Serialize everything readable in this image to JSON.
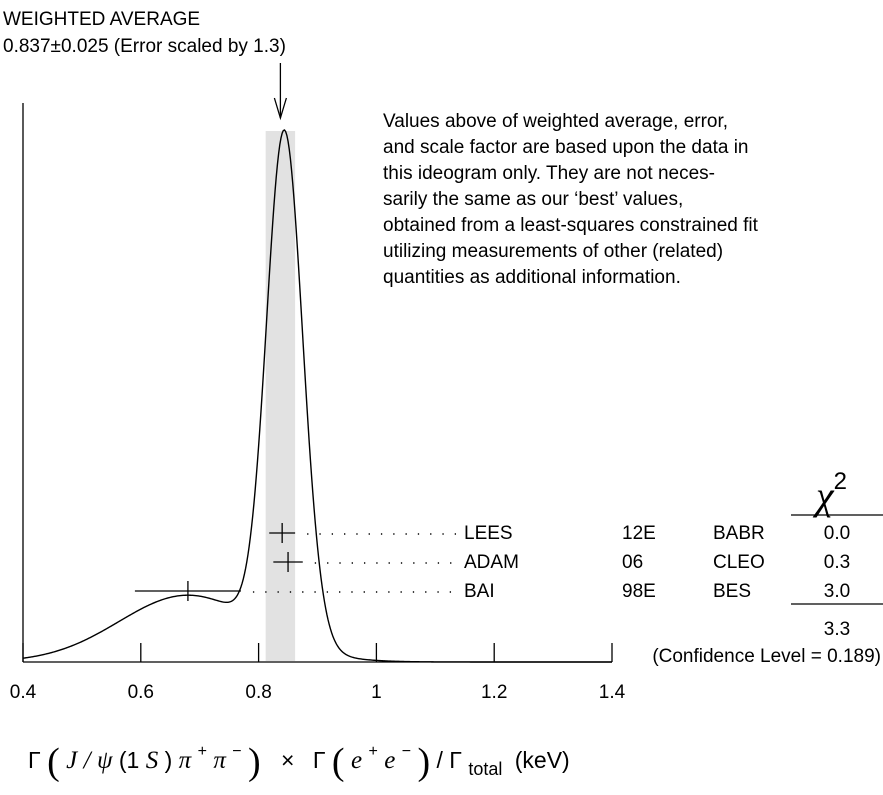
{
  "header": {
    "title": "WEIGHTED AVERAGE",
    "subtitle": "0.837±0.025 (Error scaled by 1.3)"
  },
  "note": [
    "Values above of weighted average, error,",
    "and scale factor are based upon the data in",
    "this ideogram only.  They are not neces-",
    "sarily the same as our ‘best’ values,",
    "obtained from a least-squares constrained fit",
    "utilizing measurements of other (related)",
    "quantities as additional information."
  ],
  "chi2_header": "χ",
  "chi2_exp": "2",
  "total": {
    "chi2": "3.3",
    "confidence": "(Confidence Level = 0.189)"
  },
  "xlabel": {
    "gamma1": "Γ",
    "J": "J",
    "slash": "/",
    "psi": "ψ",
    "paren1": "(1",
    "S": "S",
    "paren2": ")",
    "pi1": "π",
    "plus": "+",
    "pi2": "π",
    "minus": "−",
    "times": "×",
    "gamma2": "Γ",
    "e1": "e",
    "e2": "e",
    "slash2": "/",
    "gamma3": "Γ",
    "total": "total",
    "unit": "(keV)"
  },
  "chart_data": {
    "type": "ideogram",
    "xlim": [
      0.4,
      1.4
    ],
    "xticks": [
      0.4,
      0.6,
      0.8,
      1.0,
      1.2,
      1.4
    ],
    "xtick_labels": [
      "0.4",
      "0.6",
      "0.8",
      "1",
      "1.2",
      "1.4"
    ],
    "weighted_average": {
      "value": 0.837,
      "error": 0.025,
      "scale_factor": 1.3
    },
    "measurements": [
      {
        "label": "LEES",
        "year": "12E",
        "experiment": "BABR",
        "value": 0.84,
        "err_low": 0.022,
        "err_high": 0.022,
        "chi2": "0.0"
      },
      {
        "label": "ADAM",
        "year": "06",
        "experiment": "CLEO",
        "value": 0.85,
        "err_low": 0.025,
        "err_high": 0.025,
        "chi2": "0.3"
      },
      {
        "label": "BAI",
        "year": "98E",
        "experiment": "BES",
        "value": 0.68,
        "err_low": 0.09,
        "err_high": 0.09,
        "chi2": "3.0"
      }
    ]
  }
}
